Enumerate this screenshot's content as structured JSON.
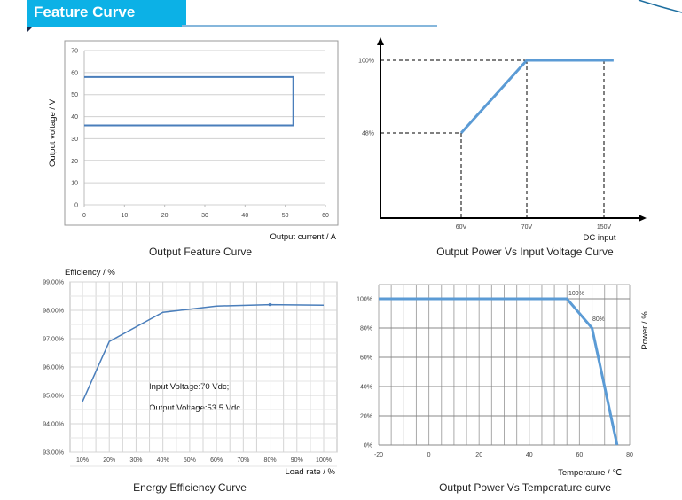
{
  "header": {
    "title": "Feature Curve",
    "accent": "#0cb1e6"
  },
  "chart_data": [
    {
      "type": "line",
      "title": "Output Feature Curve",
      "xlabel": "Output current / A",
      "ylabel": "Output voltage / V",
      "xlim": [
        0,
        60
      ],
      "ylim": [
        0,
        70
      ],
      "xticks": [
        "0",
        "10",
        "20",
        "30",
        "40",
        "50",
        "60"
      ],
      "yticks": [
        "0",
        "10",
        "20",
        "30",
        "40",
        "50",
        "60",
        "70"
      ],
      "series": [
        {
          "name": "Output",
          "x": [
            0,
            52,
            52,
            0
          ],
          "y": [
            58,
            58,
            36,
            36
          ],
          "color": "#4a7ebb"
        }
      ],
      "grid": true
    },
    {
      "type": "line",
      "title": "Output Power Vs Input Voltage Curve",
      "xlabel": "DC input",
      "xtick_labels": [
        "60V",
        "70V",
        "150V"
      ],
      "ytick_labels": [
        "100%",
        "48%"
      ],
      "series": [
        {
          "name": "Power",
          "x": [
            60,
            70,
            150,
            160
          ],
          "y": [
            48,
            100,
            100,
            100
          ],
          "color": "#5b9bd5"
        }
      ],
      "grid": false
    },
    {
      "type": "line",
      "title": "Energy Efficiency Curve",
      "xlabel": "Load rate / %",
      "ylabel": "Efficiency / %",
      "ylim": [
        93,
        99
      ],
      "categories": [
        "10%",
        "20%",
        "30%",
        "40%",
        "50%",
        "60%",
        "70%",
        "80%",
        "90%",
        "100%"
      ],
      "yticks": [
        "93.00%",
        "94.00%",
        "95.00%",
        "96.00%",
        "97.00%",
        "98.00%",
        "99.00%"
      ],
      "series": [
        {
          "name": "Efficiency",
          "x": [
            10,
            20,
            40,
            60,
            80,
            100
          ],
          "y": [
            94.78,
            96.9,
            97.93,
            98.15,
            98.2,
            98.18
          ],
          "color": "#4a7ebb"
        }
      ],
      "annotations": [
        "Input Voltage:70 Vdc;",
        "Output Voltage:53.5 Vdc"
      ],
      "grid": true
    },
    {
      "type": "line",
      "title": "Output Power Vs Temperature curve",
      "xlabel": "Temperature / ℃",
      "ylabel": "Power / %",
      "xlim": [
        -20,
        80
      ],
      "ylim": [
        0,
        100
      ],
      "xticks": [
        "-20",
        "0",
        "20",
        "40",
        "60",
        "80"
      ],
      "yticks": [
        "0%",
        "20%",
        "40%",
        "60%",
        "80%",
        "100%"
      ],
      "series": [
        {
          "name": "Power",
          "x": [
            -20,
            55,
            65,
            75
          ],
          "y": [
            100,
            100,
            80,
            0
          ],
          "color": "#5b9bd5"
        }
      ],
      "annotations": [
        "100%",
        "80%"
      ],
      "grid": true
    }
  ]
}
